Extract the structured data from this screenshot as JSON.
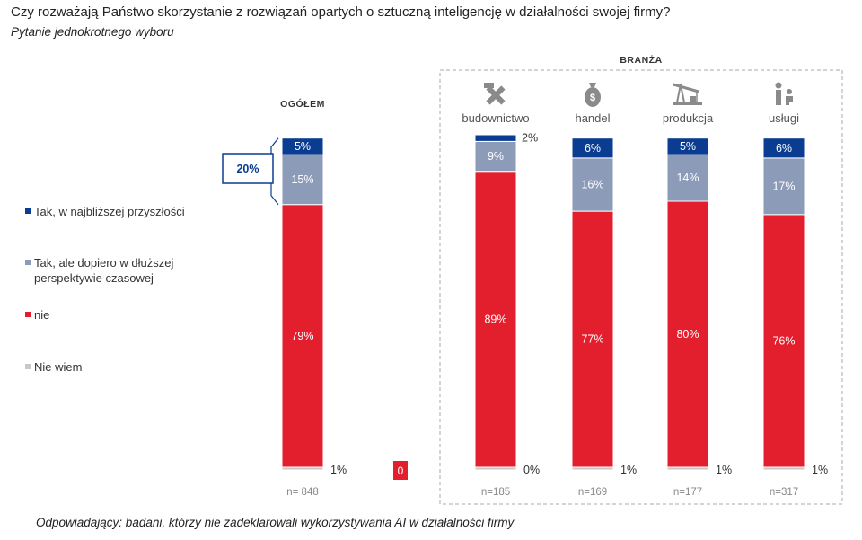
{
  "title": "Czy rozważają Państwo skorzystanie z rozwiązań opartych o sztuczną inteligencję w działalności swojej firmy?",
  "subtitle": "Pytanie jednokrotnego wyboru",
  "footer": "Odpowiadający: badani, którzy nie zadeklarowali wykorzystywania AI w działalności firmy",
  "colors": {
    "tak_najblizsza": "#0a3d91",
    "tak_dluzsza": "#8b9bb8",
    "nie": "#e31e2d",
    "nie_wiem": "#c8c8c8",
    "frame": "#aaaaaa"
  },
  "chart_data": {
    "type": "bar",
    "stacked": true,
    "orientation": "vertical",
    "ylim": [
      0,
      100
    ],
    "group_label": "BRANŻA",
    "categories": [
      "OGÓŁEM",
      "budownictwo",
      "handel",
      "produkcja",
      "usługi"
    ],
    "icons": [
      "",
      "tools-icon",
      "money-bag-icon",
      "oil-pump-icon",
      "service-person-icon"
    ],
    "sample_sizes": [
      "n= 848",
      "n=185",
      "n=169",
      "n=177",
      "n=317"
    ],
    "series": [
      {
        "name": "Nie wiem",
        "key": "nie_wiem",
        "values": [
          1,
          0,
          1,
          1,
          1
        ],
        "labels": [
          "1%",
          "0%",
          "1%",
          "1%",
          "1%"
        ]
      },
      {
        "name": "nie",
        "key": "nie",
        "values": [
          79,
          89,
          77,
          80,
          76
        ],
        "labels": [
          "79%",
          "89%",
          "77%",
          "80%",
          "76%"
        ]
      },
      {
        "name": "Tak, ale dopiero w dłuższej perspektywie czasowej",
        "key": "tak_dluzsza",
        "values": [
          15,
          9,
          16,
          14,
          17
        ],
        "labels": [
          "15%",
          "9%",
          "16%",
          "14%",
          "17%"
        ]
      },
      {
        "name": "Tak, w najbliższej przyszłości",
        "key": "tak_najblizsza",
        "values": [
          5,
          2,
          6,
          5,
          6
        ],
        "labels": [
          "5%",
          "2%",
          "6%",
          "5%",
          "6%"
        ]
      }
    ],
    "legend_order": [
      3,
      2,
      1,
      0
    ],
    "legend": [
      "Tak, w najbliższej przyszłości",
      "Tak, ale dopiero w dłuższej perspektywie czasowej",
      "nie",
      "Nie wiem"
    ],
    "annotations": {
      "total_yes": "20%",
      "zero_badge": "0"
    }
  }
}
